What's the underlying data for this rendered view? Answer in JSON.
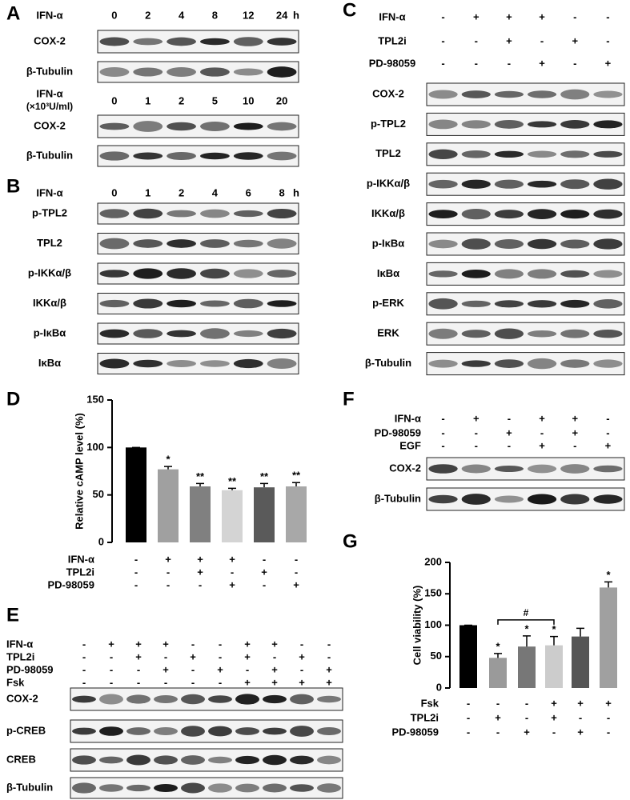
{
  "panel_a": {
    "letter": "A",
    "time": {
      "label": "IFN-α",
      "lanes": [
        "0",
        "2",
        "4",
        "8",
        "12",
        "24"
      ],
      "unit": "h"
    },
    "time_blots": [
      "COX-2",
      "β-Tubulin"
    ],
    "dose": {
      "label": "IFN-α",
      "unit": "(×10³U/ml)",
      "lanes": [
        "0",
        "1",
        "2",
        "5",
        "10",
        "20"
      ]
    },
    "dose_blots": [
      "COX-2",
      "β-Tubulin"
    ]
  },
  "panel_b": {
    "letter": "B",
    "time": {
      "label": "IFN-α",
      "lanes": [
        "0",
        "1",
        "2",
        "4",
        "6",
        "8"
      ],
      "unit": "h"
    },
    "blots": [
      "p-TPL2",
      "TPL2",
      "p-IKKα/β",
      "IKKα/β",
      "p-IκBα",
      "IκBα"
    ]
  },
  "panel_c": {
    "letter": "C",
    "conditions": [
      {
        "label": "IFN-α",
        "lanes": [
          "-",
          "+",
          "+",
          "+",
          "-",
          "-"
        ]
      },
      {
        "label": "TPL2i",
        "lanes": [
          "-",
          "-",
          "+",
          "-",
          "+",
          "-"
        ]
      },
      {
        "label": "PD-98059",
        "lanes": [
          "-",
          "-",
          "-",
          "+",
          "-",
          "+"
        ]
      }
    ],
    "blots": [
      "COX-2",
      "p-TPL2",
      "TPL2",
      "p-IKKα/β",
      "IKKα/β",
      "p-IκBα",
      "IκBα",
      "p-ERK",
      "ERK",
      "β-Tubulin"
    ]
  },
  "panel_e": {
    "letter": "E",
    "conditions": [
      {
        "label": "IFN-α",
        "lanes": [
          "-",
          "+",
          "+",
          "+",
          "-",
          "-",
          "+",
          "+",
          "-",
          "-"
        ]
      },
      {
        "label": "TPL2i",
        "lanes": [
          "-",
          "-",
          "+",
          "-",
          "+",
          "-",
          "+",
          "-",
          "+",
          "-"
        ]
      },
      {
        "label": "PD-98059",
        "lanes": [
          "-",
          "-",
          "-",
          "+",
          "-",
          "+",
          "-",
          "+",
          "-",
          "+"
        ]
      },
      {
        "label": "Fsk",
        "lanes": [
          "-",
          "-",
          "-",
          "-",
          "-",
          "-",
          "+",
          "+",
          "+",
          "+"
        ]
      }
    ],
    "blots": [
      "COX-2",
      "p-CREB",
      "CREB",
      "β-Tubulin"
    ]
  },
  "panel_f": {
    "letter": "F",
    "conditions": [
      {
        "label": "IFN-α",
        "lanes": [
          "-",
          "+",
          "-",
          "+",
          "+",
          "-"
        ]
      },
      {
        "label": "PD-98059",
        "lanes": [
          "-",
          "-",
          "+",
          "-",
          "+",
          "-"
        ]
      },
      {
        "label": "EGF",
        "lanes": [
          "-",
          "-",
          "-",
          "+",
          "-",
          "+"
        ]
      }
    ],
    "blots": [
      "COX-2",
      "β-Tubulin"
    ]
  },
  "chart_data": [
    {
      "type": "bar",
      "letter": "D",
      "ylabel": "Relative cAMP level (%)",
      "values": [
        100,
        77,
        59,
        55,
        58,
        59
      ],
      "errors": [
        0,
        3,
        3,
        2,
        4,
        4
      ],
      "colors": [
        "#000000",
        "#a0a0a0",
        "#808080",
        "#d4d4d4",
        "#5a5a5a",
        "#a8a8a8"
      ],
      "significance": [
        null,
        "*",
        "**",
        "**",
        "**",
        "**"
      ],
      "ylim": [
        0,
        150
      ],
      "yticks": [
        0,
        50,
        100,
        150
      ],
      "conditions": [
        {
          "label": "IFN-α",
          "lanes": [
            "-",
            "+",
            "+",
            "+",
            "-",
            "-"
          ]
        },
        {
          "label": "TPL2i",
          "lanes": [
            "-",
            "-",
            "+",
            "-",
            "+",
            "-"
          ]
        },
        {
          "label": "PD-98059",
          "lanes": [
            "-",
            "-",
            "-",
            "+",
            "-",
            "+"
          ]
        }
      ]
    },
    {
      "type": "bar",
      "letter": "G",
      "ylabel": "Cell viability (%)",
      "values": [
        100,
        48,
        66,
        68,
        82,
        160
      ],
      "errors": [
        0,
        7,
        17,
        14,
        13,
        9
      ],
      "colors": [
        "#000000",
        "#9a9a9a",
        "#777777",
        "#cccccc",
        "#555555",
        "#a0a0a0"
      ],
      "significance": [
        null,
        "*",
        "*",
        "*",
        null,
        "*"
      ],
      "comparison": {
        "bars": [
          1,
          3
        ],
        "label": "#"
      },
      "ylim": [
        0,
        200
      ],
      "yticks": [
        0,
        50,
        100,
        150,
        200
      ],
      "conditions": [
        {
          "label": "Fsk",
          "lanes": [
            "-",
            "-",
            "-",
            "+",
            "+",
            "+"
          ]
        },
        {
          "label": "TPL2i",
          "lanes": [
            "-",
            "+",
            "-",
            "+",
            "-",
            "-"
          ]
        },
        {
          "label": "PD-98059",
          "lanes": [
            "-",
            "-",
            "+",
            "-",
            "+",
            "-"
          ]
        }
      ]
    }
  ]
}
